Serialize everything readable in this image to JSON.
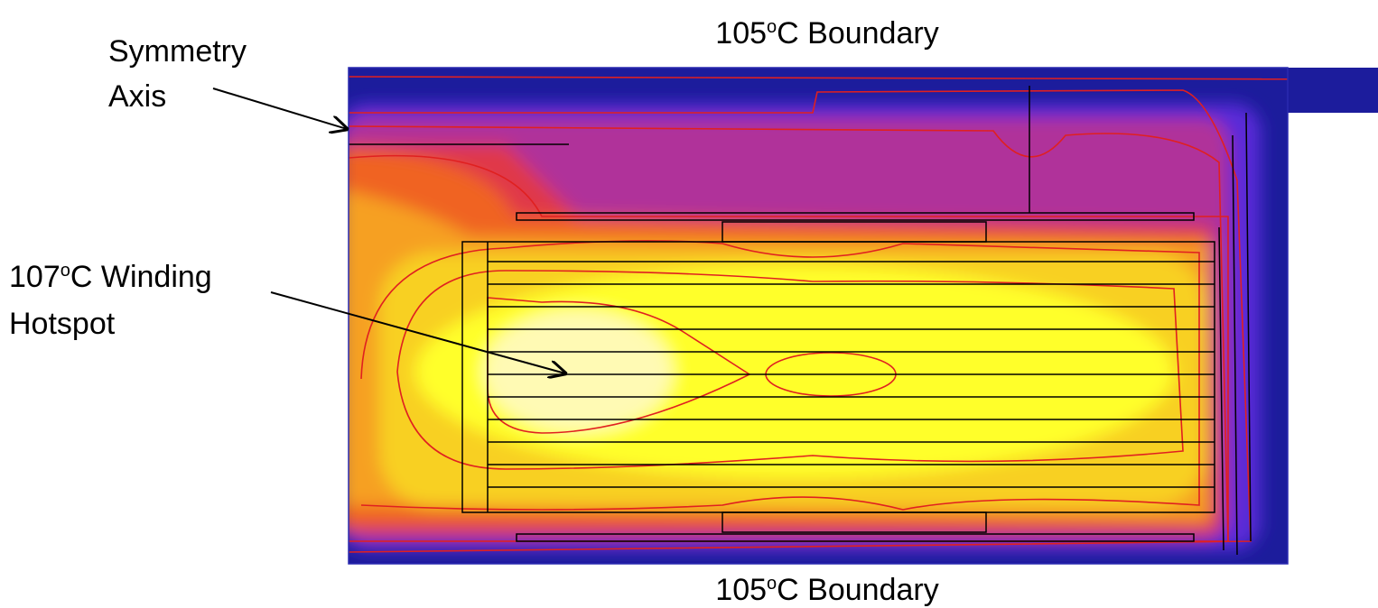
{
  "labels": {
    "top_boundary": {
      "pre": "105",
      "sup": "o",
      "post": "C Boundary"
    },
    "bottom_boundary": {
      "pre": "105",
      "sup": "o",
      "post": "C Boundary"
    },
    "symmetry_axis": {
      "line1": "Symmetry",
      "line2": "Axis"
    },
    "hotspot": {
      "pre": "107",
      "sup": "o",
      "post": "C Winding",
      "line2": "Hotspot"
    }
  }
}
